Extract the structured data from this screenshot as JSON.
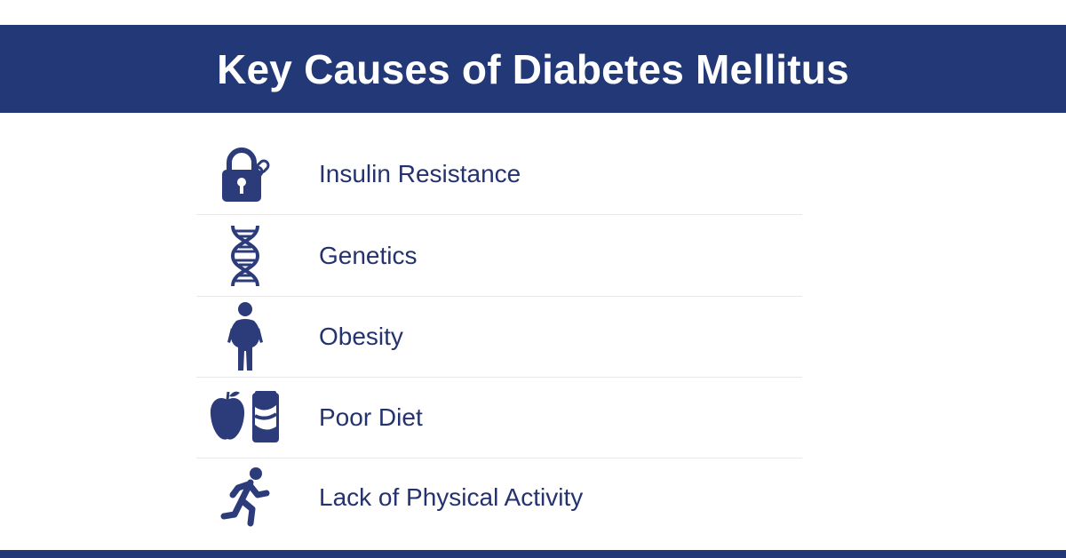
{
  "title": "Key Causes of Diabetes Mellitus",
  "causes": [
    {
      "label": "Insulin Resistance",
      "icon": "padlock-chain-icon"
    },
    {
      "label": "Genetics",
      "icon": "dna-icon"
    },
    {
      "label": "Obesity",
      "icon": "person-obesity-icon"
    },
    {
      "label": "Poor Diet",
      "icon": "apple-and-soda-can-icon"
    },
    {
      "label": "Lack of Physical Activity",
      "icon": "running-person-icon"
    }
  ],
  "colors": {
    "header_bg": "#233876",
    "text": "#24336f",
    "icon": "#2c3b7a",
    "divider": "#e6e8ee"
  }
}
